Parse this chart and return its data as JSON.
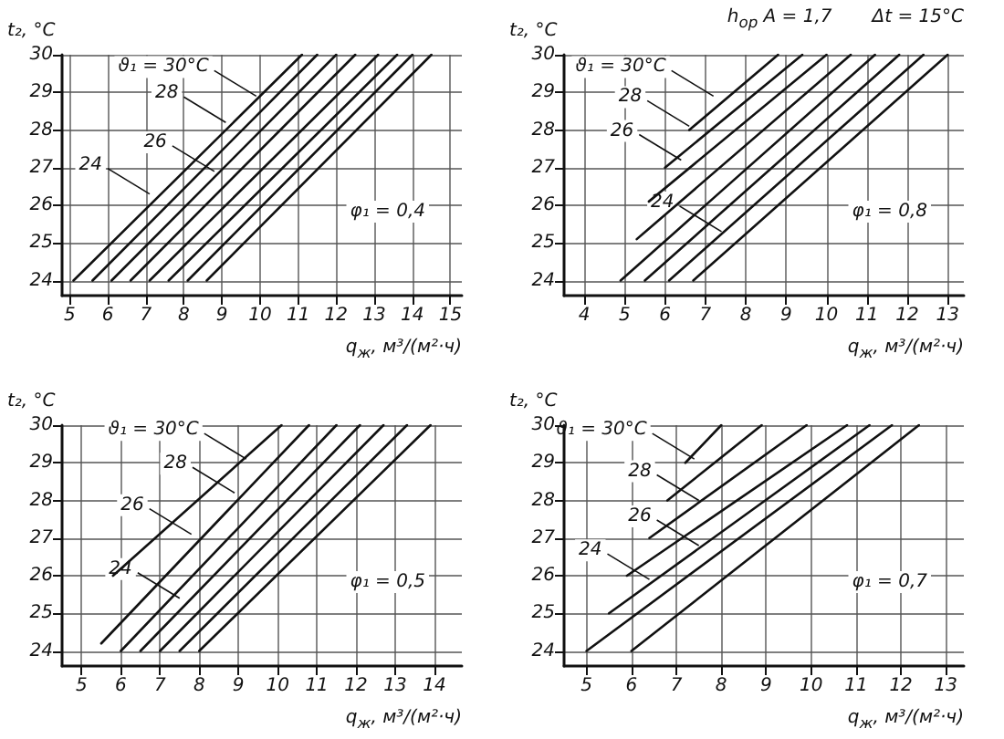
{
  "chart_data": [
    {
      "type": "line",
      "ylabel": "t₂, °C",
      "xlabel": "q$_{ж}$, м³/(м²·ч)",
      "subtitle": "φ₁ = 0,4",
      "xlim": [
        4.8,
        15.3
      ],
      "ylim": [
        23.6,
        30
      ],
      "xticks": [
        5,
        6,
        7,
        8,
        9,
        10,
        11,
        12,
        13,
        14,
        15
      ],
      "yticks": [
        24,
        25,
        26,
        27,
        28,
        29,
        30
      ],
      "grid": true,
      "marker": "none",
      "line_style": "solid",
      "annotations": [
        {
          "text": "ϑ₁ = 30°C",
          "x": 9.9,
          "y": 28.9
        },
        {
          "text": "28",
          "x": 9.1,
          "y": 28.2
        },
        {
          "text": "26",
          "x": 8.8,
          "y": 26.9
        },
        {
          "text": "24",
          "x": 7.1,
          "y": 26.3
        }
      ],
      "series": [
        {
          "color": "#111111",
          "x": [
            5.1,
            11.1
          ],
          "values": [
            24,
            30
          ]
        },
        {
          "color": "#111111",
          "x": [
            5.6,
            11.5
          ],
          "values": [
            24,
            30
          ]
        },
        {
          "color": "#111111",
          "x": [
            6.1,
            12.0
          ],
          "values": [
            24,
            30
          ]
        },
        {
          "color": "#111111",
          "x": [
            6.6,
            12.5
          ],
          "values": [
            24,
            30
          ]
        },
        {
          "color": "#111111",
          "x": [
            7.1,
            13.1
          ],
          "values": [
            24,
            30
          ]
        },
        {
          "color": "#111111",
          "x": [
            7.6,
            13.6
          ],
          "values": [
            24,
            30
          ]
        },
        {
          "color": "#111111",
          "x": [
            8.1,
            14.0
          ],
          "values": [
            24,
            30
          ]
        },
        {
          "color": "#111111",
          "x": [
            8.6,
            14.5
          ],
          "values": [
            24,
            30
          ]
        }
      ]
    },
    {
      "type": "line",
      "ylabel": "t₂, °C",
      "xlabel": "q$_{ж}$, м³/(м²·ч)",
      "subtitle": "φ₁ = 0,8",
      "xlim": [
        3.5,
        13.4
      ],
      "ylim": [
        23.6,
        30
      ],
      "xticks": [
        4,
        5,
        6,
        7,
        8,
        9,
        10,
        11,
        12,
        13
      ],
      "yticks": [
        24,
        25,
        26,
        27,
        28,
        29,
        30
      ],
      "grid": true,
      "marker": "none",
      "line_style": "solid",
      "annotations": [
        "h$_{ор}$ A = 1,7",
        "Δt = 15°C",
        {
          "text": "ϑ₁ = 30°C",
          "x": 7.2,
          "y": 28.9
        },
        {
          "text": "28",
          "x": 6.6,
          "y": 28.1
        },
        {
          "text": "26",
          "x": 6.4,
          "y": 27.2
        },
        {
          "text": "24",
          "x": 7.4,
          "y": 25.3
        }
      ],
      "series": [
        {
          "color": "#111111",
          "x": [
            6.6,
            8.8
          ],
          "values": [
            28,
            30
          ]
        },
        {
          "color": "#111111",
          "x": [
            6.0,
            9.4
          ],
          "values": [
            27,
            30
          ]
        },
        {
          "color": "#111111",
          "x": [
            5.6,
            10.0
          ],
          "values": [
            26.1,
            30
          ]
        },
        {
          "color": "#111111",
          "x": [
            5.3,
            10.6
          ],
          "values": [
            25.1,
            30
          ]
        },
        {
          "color": "#111111",
          "x": [
            4.9,
            11.2
          ],
          "values": [
            24,
            30
          ]
        },
        {
          "color": "#111111",
          "x": [
            5.5,
            11.8
          ],
          "values": [
            24,
            30
          ]
        },
        {
          "color": "#111111",
          "x": [
            6.1,
            12.4
          ],
          "values": [
            24,
            30
          ]
        },
        {
          "color": "#111111",
          "x": [
            6.7,
            13.0
          ],
          "values": [
            24,
            30
          ]
        }
      ]
    },
    {
      "type": "line",
      "ylabel": "t₂, °C",
      "xlabel": "q$_{ж}$, м³/(м²·ч)",
      "subtitle": "φ₁ = 0,5",
      "xlim": [
        4.5,
        14.7
      ],
      "ylim": [
        23.6,
        30
      ],
      "xticks": [
        5,
        6,
        7,
        8,
        9,
        10,
        11,
        12,
        13,
        14
      ],
      "yticks": [
        24,
        25,
        26,
        27,
        28,
        29,
        30
      ],
      "grid": true,
      "marker": "none",
      "line_style": "solid",
      "annotations": [
        {
          "text": "ϑ₁ = 30°C",
          "x": 9.2,
          "y": 29.1
        },
        {
          "text": "28",
          "x": 8.9,
          "y": 28.2
        },
        {
          "text": "26",
          "x": 7.8,
          "y": 27.1
        },
        {
          "text": "24",
          "x": 7.5,
          "y": 25.4
        }
      ],
      "series": [
        {
          "color": "#111111",
          "x": [
            5.8,
            10.1
          ],
          "values": [
            26,
            30
          ]
        },
        {
          "color": "#111111",
          "x": [
            5.5,
            10.8
          ],
          "values": [
            24.2,
            30
          ]
        },
        {
          "color": "#111111",
          "x": [
            6.0,
            11.5
          ],
          "values": [
            24,
            30
          ]
        },
        {
          "color": "#111111",
          "x": [
            6.5,
            12.1
          ],
          "values": [
            24,
            30
          ]
        },
        {
          "color": "#111111",
          "x": [
            7.0,
            12.7
          ],
          "values": [
            24,
            30
          ]
        },
        {
          "color": "#111111",
          "x": [
            7.5,
            13.3
          ],
          "values": [
            24,
            30
          ]
        },
        {
          "color": "#111111",
          "x": [
            8.0,
            13.9
          ],
          "values": [
            24,
            30
          ]
        }
      ]
    },
    {
      "type": "line",
      "ylabel": "t₂, °C",
      "xlabel": "q$_{ж}$, м³/(м²·ч)",
      "subtitle": "φ₁ = 0,7",
      "xlim": [
        4.5,
        13.4
      ],
      "ylim": [
        23.6,
        30
      ],
      "xticks": [
        5,
        6,
        7,
        8,
        9,
        10,
        11,
        12,
        13
      ],
      "yticks": [
        24,
        25,
        26,
        27,
        28,
        29,
        30
      ],
      "grid": true,
      "marker": "none",
      "line_style": "solid",
      "annotations": [
        {
          "text": "ϑ₁ = 30°C",
          "x": 7.4,
          "y": 29.1
        },
        {
          "text": "28",
          "x": 7.5,
          "y": 28.0
        },
        {
          "text": "26",
          "x": 7.5,
          "y": 26.8
        },
        {
          "text": "24",
          "x": 6.4,
          "y": 25.9
        }
      ],
      "series": [
        {
          "color": "#111111",
          "x": [
            7.2,
            8.0
          ],
          "values": [
            29,
            30
          ]
        },
        {
          "color": "#111111",
          "x": [
            6.8,
            8.9
          ],
          "values": [
            28,
            30
          ]
        },
        {
          "color": "#111111",
          "x": [
            6.4,
            9.9
          ],
          "values": [
            27,
            30
          ]
        },
        {
          "color": "#111111",
          "x": [
            5.9,
            10.8
          ],
          "values": [
            26,
            30
          ]
        },
        {
          "color": "#111111",
          "x": [
            5.5,
            11.3
          ],
          "values": [
            25,
            30
          ]
        },
        {
          "color": "#111111",
          "x": [
            5.0,
            11.8
          ],
          "values": [
            24,
            30
          ]
        },
        {
          "color": "#111111",
          "x": [
            6.0,
            12.4
          ],
          "values": [
            24,
            30
          ]
        }
      ]
    }
  ]
}
